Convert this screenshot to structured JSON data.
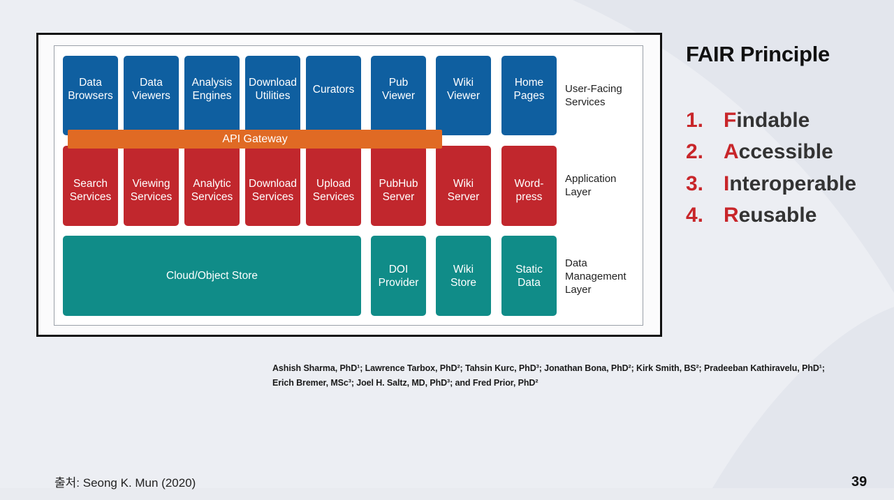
{
  "diagram": {
    "user_facing_boxes": [
      {
        "label": "Data\nBrowsers"
      },
      {
        "label": "Data\nViewers"
      },
      {
        "label": "Analysis\nEngines"
      },
      {
        "label": "Download\nUtilities"
      },
      {
        "label": "Curators"
      },
      {
        "label": "Pub\nViewer"
      },
      {
        "label": "Wiki\nViewer"
      },
      {
        "label": "Home\nPages"
      }
    ],
    "gateway_label": "API Gateway",
    "application_boxes": [
      {
        "label": "Search\nServices"
      },
      {
        "label": "Viewing\nServices"
      },
      {
        "label": "Analytic\nServices"
      },
      {
        "label": "Download\nServices"
      },
      {
        "label": "Upload\nServices"
      },
      {
        "label": "PubHub\nServer"
      },
      {
        "label": "Wiki\nServer"
      },
      {
        "label": "Word-\npress"
      }
    ],
    "data_boxes": [
      {
        "label": "Cloud/Object Store"
      },
      {
        "label": "DOI\nProvider"
      },
      {
        "label": "Wiki\nStore"
      },
      {
        "label": "Static\nData"
      }
    ],
    "layer_labels": {
      "user_facing": "User-Facing\nServices",
      "application": "Application\nLayer",
      "data_management": "Data\nManagement\nLayer"
    },
    "colors": {
      "user_facing": "#0f5fa0",
      "application": "#c1272d",
      "data_management": "#108c88",
      "gateway": "#e06a24"
    }
  },
  "fair": {
    "title": "FAIR Principle",
    "items": [
      {
        "num": "1.",
        "first": "F",
        "rest": "indable"
      },
      {
        "num": "2.",
        "first": "A",
        "rest": "ccessible"
      },
      {
        "num": "3.",
        "first": "I",
        "rest": "nteroperable"
      },
      {
        "num": "4.",
        "first": "R",
        "rest": "eusable"
      }
    ]
  },
  "authors": "Ashish Sharma, PhD¹; Lawrence Tarbox, PhD²; Tahsin Kurc, PhD³; Jonathan Bona, PhD²; Kirk Smith, BS²; Pradeeban Kathiravelu, PhD¹;\nErich Bremer, MSc³; Joel H. Saltz, MD, PhD³; and Fred Prior, PhD²",
  "source": "출처: Seong K. Mun (2020)",
  "page_number": "39"
}
